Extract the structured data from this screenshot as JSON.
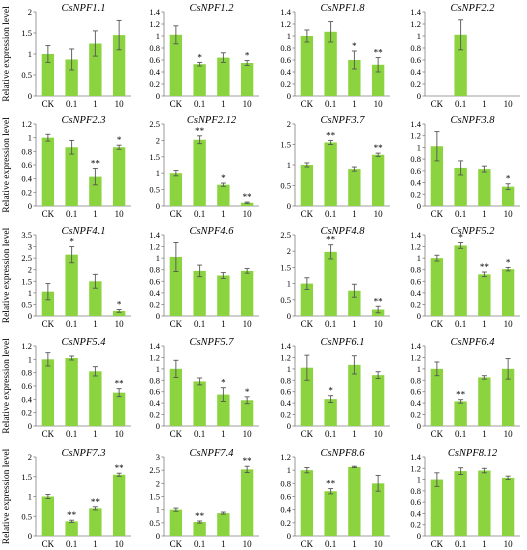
{
  "y_axis_label": "Relative expression level",
  "bar_color": "#8cd43f",
  "categories": [
    "CK",
    "0.1",
    "1",
    "10"
  ],
  "chart_data": [
    {
      "type": "bar",
      "title": "CsNPF1.1",
      "categories": [
        "CK",
        "0.1",
        "1",
        "10"
      ],
      "values": [
        1.0,
        0.87,
        1.25,
        1.45
      ],
      "errors": [
        0.2,
        0.25,
        0.3,
        0.35
      ],
      "significance": [
        "",
        "",
        "",
        ""
      ],
      "ylim": [
        0,
        2
      ],
      "yticks": [
        "0",
        "0.5",
        "1",
        "1.5",
        "2"
      ]
    },
    {
      "type": "bar",
      "title": "CsNPF1.2",
      "categories": [
        "CK",
        "0.1",
        "1",
        "10"
      ],
      "values": [
        1.02,
        0.53,
        0.64,
        0.55
      ],
      "errors": [
        0.15,
        0.03,
        0.08,
        0.04
      ],
      "significance": [
        "",
        "*",
        "",
        "*"
      ],
      "ylim": [
        0,
        1.4
      ],
      "yticks": [
        "0",
        "0.2",
        "0.4",
        "0.6",
        "0.8",
        "1",
        "1.2",
        "1.4"
      ]
    },
    {
      "type": "bar",
      "title": "CsNPF1.8",
      "categories": [
        "CK",
        "0.1",
        "1",
        "10"
      ],
      "values": [
        1.0,
        1.07,
        0.6,
        0.52
      ],
      "errors": [
        0.1,
        0.17,
        0.15,
        0.12
      ],
      "significance": [
        "",
        "",
        "*",
        "**"
      ],
      "ylim": [
        0,
        1.4
      ],
      "yticks": [
        "0",
        "0.2",
        "0.4",
        "0.6",
        "0.8",
        "1",
        "1.2",
        "1.4"
      ]
    },
    {
      "type": "bar",
      "title": "CsNPF2.2",
      "categories": [
        "CK",
        "0.1",
        "1",
        "10"
      ],
      "values": [
        0,
        1.02,
        0,
        0
      ],
      "errors": [
        0,
        0.25,
        0,
        0
      ],
      "significance": [
        "",
        "",
        "",
        ""
      ],
      "ylim": [
        0,
        1.4
      ],
      "yticks": [
        "0",
        "0.2",
        "0.4",
        "0.6",
        "0.8",
        "1",
        "1.2",
        "1.4"
      ]
    },
    {
      "type": "bar",
      "title": "CsNPF2.3",
      "categories": [
        "CK",
        "0.1",
        "1",
        "10"
      ],
      "values": [
        1.0,
        0.86,
        0.43,
        0.86
      ],
      "errors": [
        0.05,
        0.1,
        0.12,
        0.03
      ],
      "significance": [
        "",
        "",
        "**",
        "*"
      ],
      "ylim": [
        0,
        1.2
      ],
      "yticks": [
        "0",
        "0.2",
        "0.4",
        "0.6",
        "0.8",
        "1",
        "1.2"
      ]
    },
    {
      "type": "bar",
      "title": "CsNPF2.12",
      "categories": [
        "CK",
        "0.1",
        "1",
        "10"
      ],
      "values": [
        1.0,
        2.02,
        0.65,
        0.1
      ],
      "errors": [
        0.08,
        0.12,
        0.05,
        0.02
      ],
      "significance": [
        "",
        "**",
        "*",
        "**"
      ],
      "ylim": [
        0,
        2.5
      ],
      "yticks": [
        "0",
        "0.5",
        "1",
        "1.5",
        "2",
        "2.5"
      ]
    },
    {
      "type": "bar",
      "title": "CsNPF3.7",
      "categories": [
        "CK",
        "0.1",
        "1",
        "10"
      ],
      "values": [
        1.0,
        1.55,
        0.9,
        1.25
      ],
      "errors": [
        0.05,
        0.05,
        0.05,
        0.04
      ],
      "significance": [
        "",
        "**",
        "",
        "**"
      ],
      "ylim": [
        0,
        2
      ],
      "yticks": [
        "0",
        "0.5",
        "1",
        "1.5",
        "2"
      ]
    },
    {
      "type": "bar",
      "title": "CsNPF3.8",
      "categories": [
        "CK",
        "0.1",
        "1",
        "10"
      ],
      "values": [
        1.02,
        0.65,
        0.63,
        0.33
      ],
      "errors": [
        0.25,
        0.12,
        0.05,
        0.05
      ],
      "significance": [
        "",
        "",
        "",
        "*"
      ],
      "ylim": [
        0,
        1.4
      ],
      "yticks": [
        "0",
        "0.2",
        "0.4",
        "0.6",
        "0.8",
        "1",
        "1.2",
        "1.4"
      ]
    },
    {
      "type": "bar",
      "title": "CsNPF4.1",
      "categories": [
        "CK",
        "0.1",
        "1",
        "10"
      ],
      "values": [
        1.05,
        2.65,
        1.5,
        0.22
      ],
      "errors": [
        0.35,
        0.35,
        0.3,
        0.06
      ],
      "significance": [
        "",
        "*",
        "",
        "*"
      ],
      "ylim": [
        0,
        3.5
      ],
      "yticks": [
        "0",
        "0.5",
        "1",
        "1.5",
        "2",
        "2.5",
        "3",
        "3.5"
      ]
    },
    {
      "type": "bar",
      "title": "CsNPF4.6",
      "categories": [
        "CK",
        "0.1",
        "1",
        "10"
      ],
      "values": [
        1.02,
        0.78,
        0.7,
        0.78
      ],
      "errors": [
        0.25,
        0.1,
        0.05,
        0.04
      ],
      "significance": [
        "",
        "",
        "",
        ""
      ],
      "ylim": [
        0,
        1.4
      ],
      "yticks": [
        "0",
        "0.2",
        "0.4",
        "0.6",
        "0.8",
        "1",
        "1.2",
        "1.4"
      ]
    },
    {
      "type": "bar",
      "title": "CsNPF4.8",
      "categories": [
        "CK",
        "0.1",
        "1",
        "10"
      ],
      "values": [
        1.0,
        1.98,
        0.78,
        0.2
      ],
      "errors": [
        0.18,
        0.22,
        0.2,
        0.1
      ],
      "significance": [
        "",
        "**",
        "",
        "**"
      ],
      "ylim": [
        0,
        2.5
      ],
      "yticks": [
        "0",
        "0.5",
        "1",
        "1.5",
        "2",
        "2.5"
      ]
    },
    {
      "type": "bar",
      "title": "CsNPF5.2",
      "categories": [
        "CK",
        "0.1",
        "1",
        "10"
      ],
      "values": [
        1.0,
        1.22,
        0.72,
        0.81
      ],
      "errors": [
        0.05,
        0.05,
        0.04,
        0.03
      ],
      "significance": [
        "",
        "*",
        "**",
        "*"
      ],
      "ylim": [
        0,
        1.4
      ],
      "yticks": [
        "0",
        "0.2",
        "0.4",
        "0.6",
        "0.8",
        "1",
        "1.2",
        "1.4"
      ]
    },
    {
      "type": "bar",
      "title": "CsNPF5.4",
      "categories": [
        "CK",
        "0.1",
        "1",
        "10"
      ],
      "values": [
        1.0,
        1.02,
        0.82,
        0.5
      ],
      "errors": [
        0.1,
        0.03,
        0.07,
        0.06
      ],
      "significance": [
        "",
        "",
        "",
        "**"
      ],
      "ylim": [
        0,
        1.2
      ],
      "yticks": [
        "0",
        "0.2",
        "0.4",
        "0.6",
        "0.8",
        "1",
        "1.2"
      ]
    },
    {
      "type": "bar",
      "title": "CsNPF5.7",
      "categories": [
        "CK",
        "0.1",
        "1",
        "10"
      ],
      "values": [
        1.0,
        0.78,
        0.55,
        0.45
      ],
      "errors": [
        0.15,
        0.06,
        0.12,
        0.06
      ],
      "significance": [
        "",
        "",
        "*",
        "*"
      ],
      "ylim": [
        0,
        1.4
      ],
      "yticks": [
        "0",
        "0.2",
        "0.4",
        "0.6",
        "0.8",
        "1",
        "1.2",
        "1.4"
      ]
    },
    {
      "type": "bar",
      "title": "CsNPF6.1",
      "categories": [
        "CK",
        "0.1",
        "1",
        "10"
      ],
      "values": [
        1.02,
        0.47,
        1.07,
        0.89
      ],
      "errors": [
        0.22,
        0.06,
        0.16,
        0.06
      ],
      "significance": [
        "",
        "*",
        "",
        ""
      ],
      "ylim": [
        0,
        1.4
      ],
      "yticks": [
        "0",
        "0.2",
        "0.4",
        "0.6",
        "0.8",
        "1",
        "1.2",
        "1.4"
      ]
    },
    {
      "type": "bar",
      "title": "CsNPF6.4",
      "categories": [
        "CK",
        "0.1",
        "1",
        "10"
      ],
      "values": [
        1.0,
        0.43,
        0.85,
        1.0
      ],
      "errors": [
        0.12,
        0.03,
        0.03,
        0.18
      ],
      "significance": [
        "",
        "**",
        "",
        ""
      ],
      "ylim": [
        0,
        1.4
      ],
      "yticks": [
        "0",
        "0.2",
        "0.4",
        "0.6",
        "0.8",
        "1",
        "1.2",
        "1.4"
      ]
    },
    {
      "type": "bar",
      "title": "CsNPF7.3",
      "categories": [
        "CK",
        "0.1",
        "1",
        "10"
      ],
      "values": [
        1.0,
        0.37,
        0.7,
        1.55
      ],
      "errors": [
        0.05,
        0.03,
        0.04,
        0.04
      ],
      "significance": [
        "",
        "**",
        "**",
        "**"
      ],
      "ylim": [
        0,
        2
      ],
      "yticks": [
        "0",
        "0.5",
        "1",
        "1.5",
        "2"
      ]
    },
    {
      "type": "bar",
      "title": "CsNPF7.4",
      "categories": [
        "CK",
        "0.1",
        "1",
        "10"
      ],
      "values": [
        1.0,
        0.53,
        0.87,
        2.53
      ],
      "errors": [
        0.06,
        0.04,
        0.04,
        0.12
      ],
      "significance": [
        "",
        "**",
        "",
        "**"
      ],
      "ylim": [
        0,
        3
      ],
      "yticks": [
        "0",
        "0.5",
        "1",
        "1.5",
        "2",
        "2.5",
        "3"
      ]
    },
    {
      "type": "bar",
      "title": "CsNPF8.6",
      "categories": [
        "CK",
        "0.1",
        "1",
        "10"
      ],
      "values": [
        1.0,
        0.68,
        1.05,
        0.8
      ],
      "errors": [
        0.04,
        0.04,
        0.01,
        0.12
      ],
      "significance": [
        "",
        "**",
        "",
        ""
      ],
      "ylim": [
        0,
        1.2
      ],
      "yticks": [
        "0",
        "0.2",
        "0.4",
        "0.6",
        "0.8",
        "1",
        "1.2"
      ]
    },
    {
      "type": "bar",
      "title": "CsNPF8.12",
      "categories": [
        "CK",
        "0.1",
        "1",
        "10"
      ],
      "values": [
        1.0,
        1.15,
        1.16,
        1.03
      ],
      "errors": [
        0.12,
        0.06,
        0.04,
        0.03
      ],
      "significance": [
        "",
        "",
        "",
        ""
      ],
      "ylim": [
        0,
        1.4
      ],
      "yticks": [
        "0",
        "0.2",
        "0.4",
        "0.6",
        "0.8",
        "1",
        "1.2",
        "1.4"
      ]
    }
  ]
}
